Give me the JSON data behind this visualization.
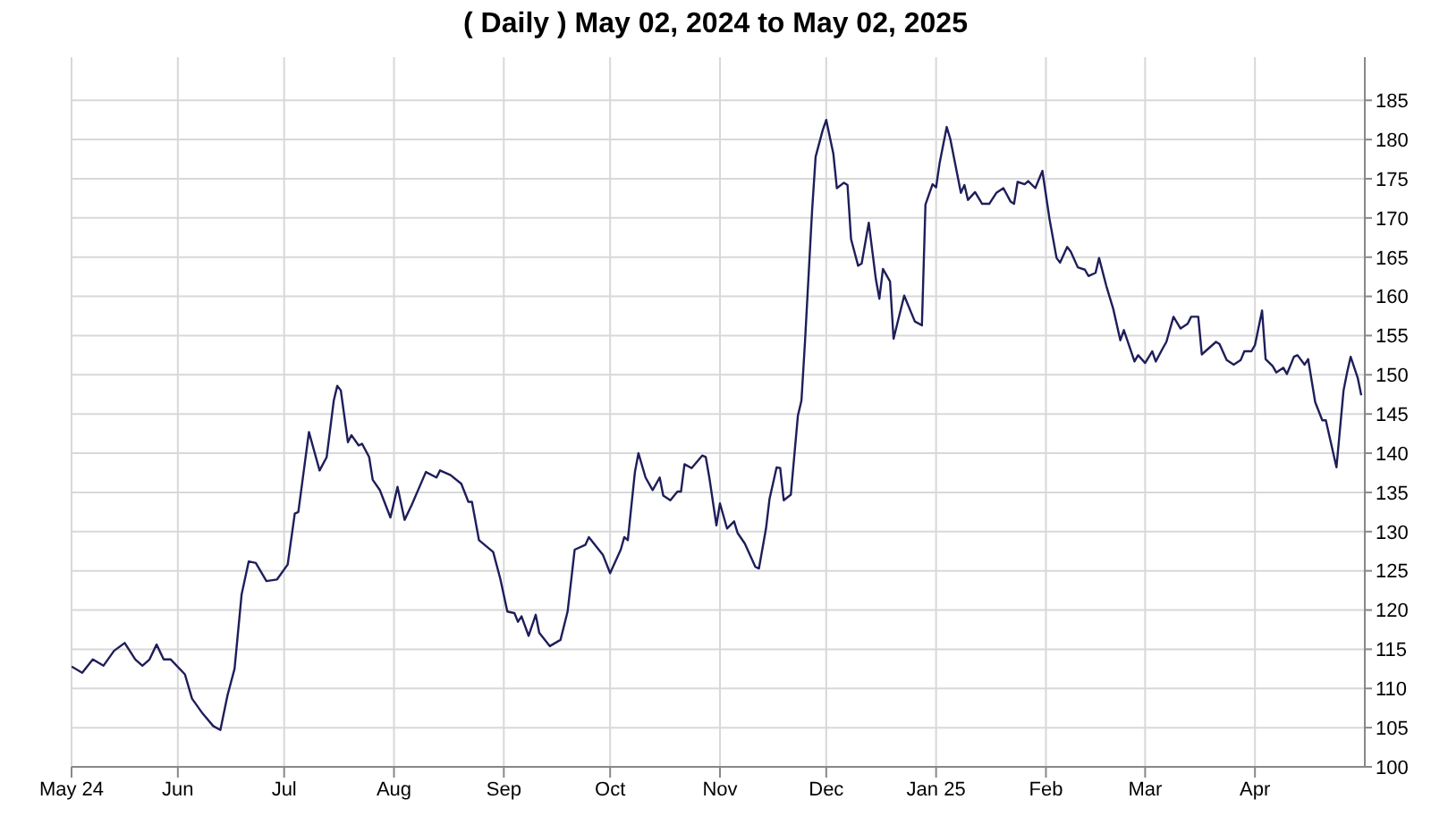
{
  "chart_data": {
    "type": "line",
    "title": "( Daily ) May 02, 2024 to May 02, 2025",
    "x": [
      "2024-05-02",
      "2024-05-05",
      "2024-05-08",
      "2024-05-11",
      "2024-05-14",
      "2024-05-17",
      "2024-05-20",
      "2024-05-22",
      "2024-05-24",
      "2024-05-26",
      "2024-05-28",
      "2024-05-30",
      "2024-06-03",
      "2024-06-05",
      "2024-06-08",
      "2024-06-11",
      "2024-06-13",
      "2024-06-15",
      "2024-06-17",
      "2024-06-19",
      "2024-06-21",
      "2024-06-23",
      "2024-06-26",
      "2024-06-29",
      "2024-07-02",
      "2024-07-04",
      "2024-07-05",
      "2024-07-08",
      "2024-07-11",
      "2024-07-13",
      "2024-07-15",
      "2024-07-16",
      "2024-07-17",
      "2024-07-19",
      "2024-07-20",
      "2024-07-22",
      "2024-07-23",
      "2024-07-25",
      "2024-07-26",
      "2024-07-28",
      "2024-07-31",
      "2024-08-02",
      "2024-08-04",
      "2024-08-06",
      "2024-08-10",
      "2024-08-13",
      "2024-08-14",
      "2024-08-17",
      "2024-08-20",
      "2024-08-22",
      "2024-08-23",
      "2024-08-25",
      "2024-08-29",
      "2024-08-31",
      "2024-09-02",
      "2024-09-04",
      "2024-09-05",
      "2024-09-06",
      "2024-09-08",
      "2024-09-10",
      "2024-09-11",
      "2024-09-14",
      "2024-09-17",
      "2024-09-19",
      "2024-09-21",
      "2024-09-24",
      "2024-09-25",
      "2024-09-29",
      "2024-10-01",
      "2024-10-04",
      "2024-10-05",
      "2024-10-06",
      "2024-10-08",
      "2024-10-09",
      "2024-10-11",
      "2024-10-13",
      "2024-10-15",
      "2024-10-16",
      "2024-10-18",
      "2024-10-20",
      "2024-10-21",
      "2024-10-22",
      "2024-10-24",
      "2024-10-27",
      "2024-10-28",
      "2024-10-29",
      "2024-10-31",
      "2024-11-01",
      "2024-11-03",
      "2024-11-05",
      "2024-11-06",
      "2024-11-08",
      "2024-11-11",
      "2024-11-12",
      "2024-11-14",
      "2024-11-15",
      "2024-11-17",
      "2024-11-18",
      "2024-11-19",
      "2024-11-21",
      "2024-11-23",
      "2024-11-24",
      "2024-11-25",
      "2024-11-27",
      "2024-11-28",
      "2024-11-30",
      "2024-12-01",
      "2024-12-03",
      "2024-12-04",
      "2024-12-06",
      "2024-12-07",
      "2024-12-08",
      "2024-12-10",
      "2024-12-11",
      "2024-12-13",
      "2024-12-15",
      "2024-12-16",
      "2024-12-17",
      "2024-12-19",
      "2024-12-20",
      "2024-12-23",
      "2024-12-26",
      "2024-12-28",
      "2024-12-29",
      "2024-12-31",
      "2025-01-01",
      "2025-01-02",
      "2025-01-04",
      "2025-01-05",
      "2025-01-08",
      "2025-01-09",
      "2025-01-10",
      "2025-01-12",
      "2025-01-14",
      "2025-01-16",
      "2025-01-18",
      "2025-01-20",
      "2025-01-22",
      "2025-01-23",
      "2025-01-24",
      "2025-01-26",
      "2025-01-27",
      "2025-01-29",
      "2025-01-31",
      "2025-02-02",
      "2025-02-04",
      "2025-02-05",
      "2025-02-07",
      "2025-02-08",
      "2025-02-10",
      "2025-02-12",
      "2025-02-13",
      "2025-02-15",
      "2025-02-16",
      "2025-02-18",
      "2025-02-20",
      "2025-02-22",
      "2025-02-23",
      "2025-02-26",
      "2025-02-27",
      "2025-03-01",
      "2025-03-03",
      "2025-03-04",
      "2025-03-06",
      "2025-03-07",
      "2025-03-09",
      "2025-03-11",
      "2025-03-13",
      "2025-03-14",
      "2025-03-16",
      "2025-03-17",
      "2025-03-19",
      "2025-03-21",
      "2025-03-22",
      "2025-03-24",
      "2025-03-26",
      "2025-03-28",
      "2025-03-29",
      "2025-03-31",
      "2025-04-01",
      "2025-04-03",
      "2025-04-04",
      "2025-04-06",
      "2025-04-07",
      "2025-04-09",
      "2025-04-10",
      "2025-04-12",
      "2025-04-13",
      "2025-04-15",
      "2025-04-16",
      "2025-04-18",
      "2025-04-20",
      "2025-04-21",
      "2025-04-24",
      "2025-04-26",
      "2025-04-27",
      "2025-04-28",
      "2025-04-30",
      "2025-05-01"
    ],
    "series": [
      {
        "color": "#1e1e5a",
        "values": [
          112.8,
          112.0,
          113.7,
          112.9,
          114.8,
          115.8,
          113.7,
          112.9,
          113.7,
          115.6,
          113.7,
          113.7,
          111.8,
          108.7,
          106.8,
          105.2,
          104.7,
          109.1,
          112.5,
          122.0,
          126.2,
          126.0,
          123.7,
          123.9,
          125.8,
          132.3,
          132.5,
          142.7,
          137.8,
          139.5,
          146.7,
          148.6,
          148.0,
          141.4,
          142.3,
          141.0,
          141.2,
          139.5,
          136.6,
          135.3,
          131.8,
          135.7,
          131.5,
          133.4,
          137.6,
          136.9,
          137.8,
          137.2,
          136.1,
          133.8,
          133.8,
          128.9,
          127.4,
          124.0,
          119.8,
          119.6,
          118.5,
          119.2,
          116.7,
          119.4,
          117.1,
          115.4,
          116.2,
          119.8,
          127.7,
          128.3,
          129.3,
          127.0,
          124.7,
          127.7,
          129.3,
          128.9,
          137.6,
          140.0,
          136.9,
          135.3,
          136.9,
          134.6,
          134.0,
          135.1,
          135.1,
          138.6,
          138.1,
          139.7,
          139.5,
          136.9,
          130.8,
          133.6,
          130.4,
          131.3,
          129.8,
          128.5,
          125.5,
          125.3,
          130.4,
          134.2,
          138.2,
          138.1,
          134.0,
          134.7,
          144.8,
          146.7,
          154.2,
          170.9,
          177.8,
          181.2,
          182.5,
          178.2,
          173.8,
          174.5,
          174.2,
          167.3,
          163.9,
          164.2,
          169.4,
          162.2,
          159.7,
          163.5,
          161.9,
          154.6,
          160.1,
          156.8,
          156.3,
          171.7,
          174.3,
          173.9,
          177.0,
          181.6,
          180.1,
          173.2,
          174.2,
          172.3,
          173.3,
          171.8,
          171.8,
          173.2,
          173.8,
          172.1,
          171.8,
          174.6,
          174.3,
          174.7,
          173.8,
          176.0,
          169.9,
          164.9,
          164.3,
          166.3,
          165.7,
          163.7,
          163.4,
          162.6,
          163.0,
          164.9,
          161.4,
          158.4,
          154.4,
          155.7,
          151.7,
          152.5,
          151.5,
          153.0,
          151.7,
          153.4,
          154.2,
          157.4,
          155.9,
          156.5,
          157.4,
          157.4,
          152.6,
          153.4,
          154.2,
          153.9,
          151.9,
          151.3,
          151.9,
          153.0,
          153.0,
          153.8,
          158.2,
          152.0,
          151.1,
          150.3,
          150.9,
          150.1,
          152.3,
          152.5,
          151.3,
          152.0,
          146.5,
          144.2,
          144.2,
          138.2,
          148.0,
          150.3,
          152.3,
          149.6,
          147.4
        ]
      }
    ],
    "xlim": [
      "2024-05-02",
      "2025-05-02"
    ],
    "xticks": [
      {
        "value": "2024-05-02",
        "label": "May 24"
      },
      {
        "value": "2024-06-01",
        "label": "Jun"
      },
      {
        "value": "2024-07-01",
        "label": "Jul"
      },
      {
        "value": "2024-08-01",
        "label": "Aug"
      },
      {
        "value": "2024-09-01",
        "label": "Sep"
      },
      {
        "value": "2024-10-01",
        "label": "Oct"
      },
      {
        "value": "2024-11-01",
        "label": "Nov"
      },
      {
        "value": "2024-12-01",
        "label": "Dec"
      },
      {
        "value": "2025-01-01",
        "label": "Jan 25"
      },
      {
        "value": "2025-02-01",
        "label": "Feb"
      },
      {
        "value": "2025-03-01",
        "label": "Mar"
      },
      {
        "value": "2025-04-01",
        "label": "Apr"
      }
    ],
    "ylim": [
      100,
      190.5
    ],
    "yticks": [
      100,
      105,
      110,
      115,
      120,
      125,
      130,
      135,
      140,
      145,
      150,
      155,
      160,
      165,
      170,
      175,
      180,
      185
    ],
    "grid": true,
    "marker": "none",
    "line_style": "solid"
  }
}
